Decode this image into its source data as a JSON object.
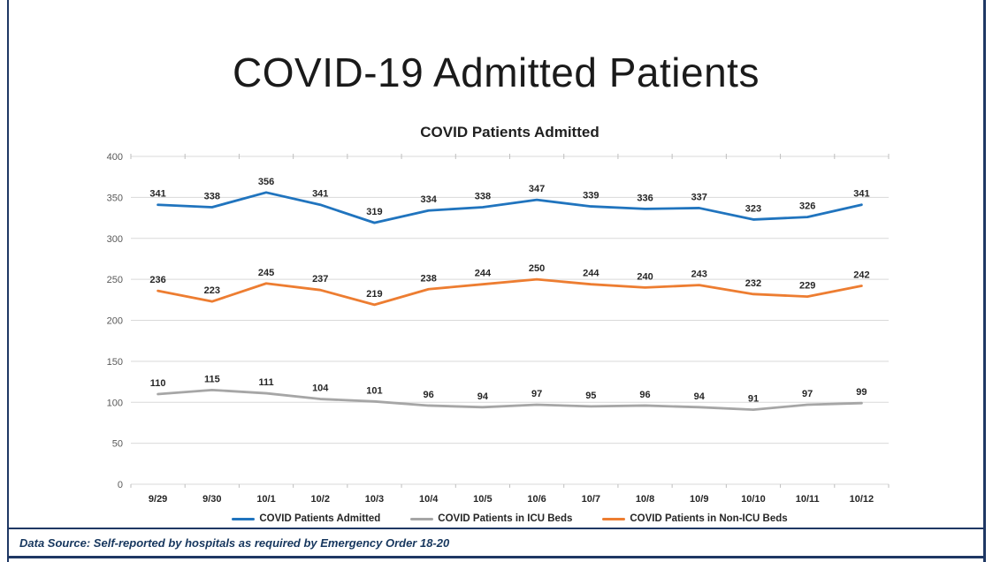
{
  "main_title": "COVID-19 Admitted Patients",
  "footer": {
    "data_source": "Data Source: Self-reported by hospitals as required by Emergency Order 18-20"
  },
  "frame": {
    "border_color": "#1f3864"
  },
  "chart_data": {
    "type": "line",
    "title": "COVID Patients Admitted",
    "categories": [
      "9/29",
      "9/30",
      "10/1",
      "10/2",
      "10/3",
      "10/4",
      "10/5",
      "10/6",
      "10/7",
      "10/8",
      "10/9",
      "10/10",
      "10/11",
      "10/12"
    ],
    "series": [
      {
        "name": "COVID Patients Admitted",
        "color": "#2074be",
        "values": [
          341,
          338,
          356,
          341,
          319,
          334,
          338,
          347,
          339,
          336,
          337,
          323,
          326,
          341
        ]
      },
      {
        "name": "COVID Patients in ICU Beds",
        "color": "#a6a6a6",
        "values": [
          110,
          115,
          111,
          104,
          101,
          96,
          94,
          97,
          95,
          96,
          94,
          91,
          97,
          99
        ]
      },
      {
        "name": "COVID Patients in Non-ICU Beds",
        "color": "#ed7d31",
        "values": [
          236,
          223,
          245,
          237,
          219,
          238,
          244,
          250,
          244,
          240,
          243,
          232,
          229,
          242
        ]
      }
    ],
    "xlabel": "",
    "ylabel": "",
    "ylim": [
      0,
      400
    ],
    "y_ticks": [
      0,
      50,
      100,
      150,
      200,
      250,
      300,
      350,
      400
    ],
    "grid": "horizontal",
    "gridline_color": "#d9d9d9",
    "tick_mark_color": "#bfbfbf",
    "legend_position": "bottom",
    "data_labels": true
  }
}
